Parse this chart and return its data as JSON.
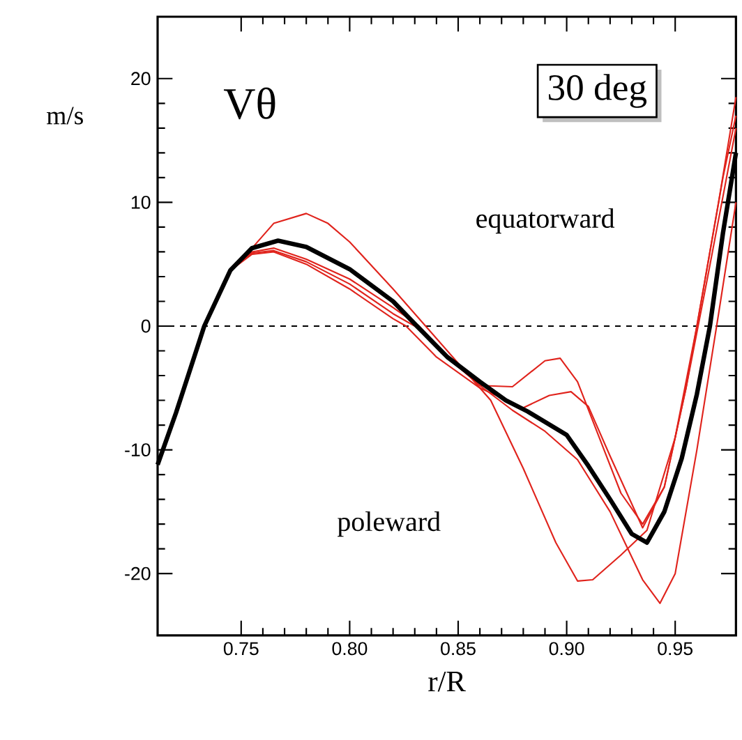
{
  "chart_data": {
    "type": "line",
    "xlabel": "r/R",
    "ylabel": "m/s",
    "annotations": [
      "Vθ",
      "30 deg",
      "equatorward",
      "poleward"
    ],
    "xlim": [
      0.7115,
      0.978
    ],
    "ylim": [
      -25,
      25
    ],
    "xticks": [
      {
        "value": 0.75,
        "label": "0.75"
      },
      {
        "value": 0.8,
        "label": "0.80"
      },
      {
        "value": 0.85,
        "label": "0.85"
      },
      {
        "value": 0.9,
        "label": "0.90"
      },
      {
        "value": 0.95,
        "label": "0.95"
      }
    ],
    "yticks": [
      -20,
      -10,
      0,
      10,
      20
    ],
    "ref_lines": [
      {
        "axis": "y",
        "value": 0,
        "line_style": "dashed",
        "color": "#000000"
      }
    ],
    "grid": false,
    "marker": "none",
    "line_style": "solid",
    "series": [
      {
        "color": "#e0231c",
        "x": [
          0.733,
          0.745,
          0.755,
          0.765,
          0.78,
          0.79,
          0.8,
          0.82,
          0.835,
          0.85,
          0.865,
          0.88,
          0.895,
          0.905,
          0.912,
          0.925,
          0.937,
          0.95,
          0.96,
          0.97,
          0.978
        ],
        "values": [
          0,
          4.5,
          6.3,
          8.3,
          9.1,
          8.3,
          6.8,
          3,
          0,
          -3,
          -6,
          -11.5,
          -17.5,
          -20.6,
          -20.5,
          -18.5,
          -16.5,
          -9,
          0,
          10,
          18.5
        ]
      },
      {
        "color": "#e0231c",
        "x": [
          0.733,
          0.745,
          0.755,
          0.765,
          0.78,
          0.8,
          0.82,
          0.832,
          0.845,
          0.86,
          0.875,
          0.89,
          0.897,
          0.905,
          0.915,
          0.925,
          0.935,
          0.945,
          0.955,
          0.963,
          0.972,
          0.978
        ],
        "values": [
          0,
          4.5,
          6,
          6.3,
          5.4,
          3.8,
          1.5,
          0,
          -2.5,
          -4.8,
          -4.9,
          -2.8,
          -2.6,
          -4.5,
          -9,
          -13.5,
          -16,
          -13,
          -5,
          3,
          12,
          17
        ]
      },
      {
        "color": "#e0231c",
        "x": [
          0.733,
          0.745,
          0.755,
          0.765,
          0.78,
          0.8,
          0.82,
          0.826,
          0.84,
          0.86,
          0.88,
          0.892,
          0.902,
          0.91,
          0.92,
          0.935,
          0.945,
          0.955,
          0.965,
          0.978
        ],
        "values": [
          0,
          4.5,
          5.8,
          6,
          5,
          3,
          0.6,
          0,
          -2.5,
          -5,
          -6.6,
          -5.6,
          -5.3,
          -6.5,
          -10.5,
          -16.3,
          -13,
          -5,
          4,
          16
        ]
      },
      {
        "color": "#e0231c",
        "x": [
          0.733,
          0.745,
          0.755,
          0.765,
          0.78,
          0.8,
          0.82,
          0.83,
          0.845,
          0.86,
          0.875,
          0.89,
          0.905,
          0.92,
          0.935,
          0.943,
          0.95,
          0.96,
          0.97,
          0.978
        ],
        "values": [
          0,
          4.5,
          5.9,
          6.1,
          5.2,
          3.4,
          1,
          0,
          -2.5,
          -4.8,
          -6.8,
          -8.5,
          -10.8,
          -15,
          -20.5,
          -22.4,
          -20,
          -10,
          1,
          10
        ]
      },
      {
        "color": "#000000",
        "x": [
          0.7115,
          0.72,
          0.733,
          0.745,
          0.755,
          0.767,
          0.78,
          0.8,
          0.82,
          0.831,
          0.845,
          0.86,
          0.872,
          0.882,
          0.9,
          0.91,
          0.92,
          0.93,
          0.937,
          0.945,
          0.953,
          0.96,
          0.966,
          0.972,
          0.978
        ],
        "values": [
          -11.2,
          -7,
          0,
          4.5,
          6.3,
          6.9,
          6.4,
          4.6,
          2,
          0,
          -2.5,
          -4.5,
          -6,
          -6.9,
          -8.8,
          -11.3,
          -14,
          -16.8,
          -17.5,
          -15,
          -10.7,
          -5.5,
          0,
          7.5,
          14
        ]
      }
    ]
  }
}
